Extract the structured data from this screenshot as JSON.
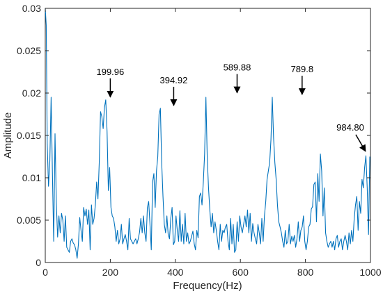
{
  "chart_data": {
    "type": "line",
    "xlabel": "Frequency(Hz)",
    "ylabel": "Amplitude",
    "xlim": [
      0,
      1000
    ],
    "ylim": [
      0,
      0.03
    ],
    "x_ticks": [
      0,
      200,
      400,
      600,
      800,
      1000
    ],
    "x_tick_labels": [
      "0",
      "200",
      "400",
      "600",
      "800",
      "1000"
    ],
    "y_ticks": [
      0,
      0.005,
      0.01,
      0.015,
      0.02,
      0.025,
      0.03
    ],
    "y_tick_labels": [
      "0",
      "0.005",
      "0.01",
      "0.015",
      "0.02",
      "0.025",
      "0.03"
    ],
    "grid": false,
    "line_color": "#0072BD",
    "series": [
      {
        "x": [
          0,
          3,
          6,
          10,
          14,
          18,
          22,
          26,
          30,
          34,
          38,
          42,
          46,
          50,
          54,
          58,
          62,
          66,
          70,
          74,
          78,
          82,
          86,
          90,
          94,
          98,
          102,
          106,
          110,
          114,
          118,
          122,
          126,
          130,
          134,
          138,
          142,
          146,
          150,
          154,
          158,
          162,
          166,
          170,
          174,
          178,
          182,
          186,
          190,
          194,
          198,
          202,
          206,
          210,
          214,
          218,
          222,
          226,
          230,
          234,
          238,
          242,
          246,
          250,
          254,
          258,
          262,
          266,
          270,
          274,
          278,
          282,
          286,
          290,
          294,
          298,
          302,
          306,
          310,
          314,
          318,
          322,
          326,
          330,
          334,
          338,
          342,
          346,
          350,
          354,
          358,
          362,
          366,
          370,
          374,
          378,
          382,
          386,
          390,
          394,
          398,
          402,
          406,
          410,
          414,
          418,
          422,
          426,
          430,
          434,
          438,
          442,
          446,
          450,
          454,
          458,
          462,
          466,
          470,
          474,
          478,
          482,
          486,
          490,
          494,
          498,
          502,
          506,
          510,
          514,
          518,
          522,
          526,
          530,
          534,
          538,
          542,
          546,
          550,
          554,
          558,
          562,
          566,
          570,
          574,
          578,
          582,
          586,
          590,
          594,
          598,
          602,
          606,
          610,
          614,
          618,
          622,
          626,
          630,
          634,
          638,
          642,
          646,
          650,
          654,
          658,
          662,
          666,
          670,
          674,
          678,
          682,
          686,
          690,
          694,
          698,
          702,
          706,
          710,
          714,
          718,
          722,
          726,
          730,
          734,
          738,
          742,
          746,
          750,
          754,
          758,
          762,
          766,
          770,
          774,
          778,
          782,
          786,
          790,
          794,
          798,
          802,
          806,
          810,
          814,
          818,
          822,
          826,
          830,
          834,
          838,
          842,
          846,
          850,
          854,
          858,
          862,
          866,
          870,
          874,
          878,
          882,
          886,
          890,
          894,
          898,
          902,
          906,
          910,
          914,
          918,
          922,
          926,
          930,
          934,
          938,
          942,
          946,
          950,
          954,
          958,
          962,
          966,
          970,
          974,
          978,
          982,
          986,
          990,
          994,
          998
        ],
        "y": [
          0.03,
          0.028,
          0.014,
          0.009,
          0.012,
          0.0195,
          0.0105,
          0.0025,
          0.0152,
          0.007,
          0.003,
          0.0055,
          0.0035,
          0.0058,
          0.005,
          0.0025,
          0.0055,
          0.0018,
          0.0015,
          0.0012,
          0.0025,
          0.0028,
          0.0023,
          0.0021,
          0.0015,
          0.0005,
          0.0022,
          0.0053,
          0.0038,
          0.0025,
          0.0065,
          0.0055,
          0.0063,
          0.0045,
          0.0062,
          0.0015,
          0.0068,
          0.0045,
          0.0052,
          0.0068,
          0.0095,
          0.0075,
          0.0118,
          0.0178,
          0.0172,
          0.0158,
          0.0183,
          0.0192,
          0.0155,
          0.0085,
          0.0112,
          0.0065,
          0.0055,
          0.0052,
          0.0042,
          0.0025,
          0.0038,
          0.0022,
          0.0028,
          0.0045,
          0.0022,
          0.0028,
          0.0033,
          0.0025,
          0.0015,
          0.0052,
          0.0028,
          0.0025,
          0.0022,
          0.0025,
          0.0028,
          0.0022,
          0.0028,
          0.0036,
          0.0052,
          0.0035,
          0.0055,
          0.0035,
          0.0025,
          0.0065,
          0.0072,
          0.0045,
          0.0015,
          0.0095,
          0.0105,
          0.0065,
          0.0108,
          0.0125,
          0.0175,
          0.0182,
          0.0118,
          0.0078,
          0.0045,
          0.0035,
          0.0055,
          0.0033,
          0.0028,
          0.0052,
          0.0065,
          0.0021,
          0.0025,
          0.0055,
          0.0038,
          0.0025,
          0.0061,
          0.0025,
          0.0045,
          0.0022,
          0.0058,
          0.0025,
          0.0035,
          0.0022,
          0.0025,
          0.0031,
          0.0037,
          0.0022,
          0.0015,
          0.0038,
          0.0029,
          0.0078,
          0.0082,
          0.0068,
          0.0095,
          0.0128,
          0.0195,
          0.0125,
          0.0088,
          0.0062,
          0.0042,
          0.0058,
          0.0035,
          0.0048,
          0.0038,
          0.0025,
          0.0015,
          0.0045,
          0.0025,
          0.0038,
          0.0035,
          0.0042,
          0.0045,
          0.0025,
          0.0015,
          0.0052,
          0.0022,
          0.0045,
          0.0012,
          0.0015,
          0.0048,
          0.0025,
          0.0055,
          0.0042,
          0.0035,
          0.0045,
          0.0055,
          0.0042,
          0.0062,
          0.0035,
          0.0058,
          0.0025,
          0.0046,
          0.0035,
          0.0028,
          0.0022,
          0.0045,
          0.0035,
          0.0022,
          0.0052,
          0.0025,
          0.0055,
          0.0072,
          0.0098,
          0.0108,
          0.0118,
          0.0145,
          0.0195,
          0.0148,
          0.0118,
          0.0098,
          0.0068,
          0.0048,
          0.0042,
          0.0035,
          0.0025,
          0.0018,
          0.0038,
          0.0022,
          0.0025,
          0.0045,
          0.0022,
          0.0031,
          0.0025,
          0.0032,
          0.0018,
          0.0028,
          0.0048,
          0.0025,
          0.0038,
          0.0042,
          0.0055,
          0.0025,
          0.0015,
          0.0025,
          0.0042,
          0.0045,
          0.0063,
          0.0066,
          0.0092,
          0.0095,
          0.0048,
          0.0105,
          0.0072,
          0.0128,
          0.0108,
          0.0055,
          0.0088,
          0.0035,
          0.0025,
          0.0018,
          0.0022,
          0.0025,
          0.0018,
          0.0025,
          0.0015,
          0.0028,
          0.0032,
          0.0018,
          0.0025,
          0.0028,
          0.0015,
          0.0025,
          0.0032,
          0.0025,
          0.0015,
          0.0035,
          0.0022,
          0.0038,
          0.0025,
          0.0052,
          0.0068,
          0.0078,
          0.0038,
          0.0072,
          0.0058,
          0.0098,
          0.0088,
          0.0112,
          0.0126,
          0.0088,
          0.0033,
          0.0125
        ]
      }
    ],
    "annotations": [
      {
        "text": "199.96",
        "x": 199.96,
        "y": 0.0192
      },
      {
        "text": "394.92",
        "x": 394.92,
        "y": 0.0182
      },
      {
        "text": "589.88",
        "x": 589.88,
        "y": 0.0197
      },
      {
        "text": "789.8",
        "x": 789.8,
        "y": 0.0195
      },
      {
        "text": "984.80",
        "x": 984.8,
        "y": 0.0128
      }
    ]
  }
}
